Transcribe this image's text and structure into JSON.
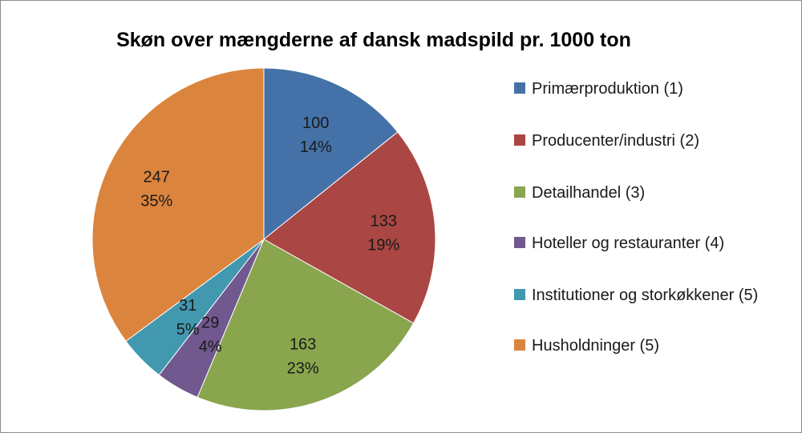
{
  "chart_data": {
    "type": "pie",
    "title": "Skøn over mængderne af dansk madspild pr. 1000 ton",
    "legend_position": "right",
    "slices": [
      {
        "label": "Primærproduktion (1)",
        "value": 100,
        "percent": "14%",
        "color": "#4472a8"
      },
      {
        "label": "Producenter/industri (2)",
        "value": 133,
        "percent": "19%",
        "color": "#aa4643"
      },
      {
        "label": "Detailhandel (3)",
        "value": 163,
        "percent": "23%",
        "color": "#89a54e"
      },
      {
        "label": "Hoteller og restauranter (4)",
        "value": 29,
        "percent": "4%",
        "color": "#71588f"
      },
      {
        "label": "Institutioner og storkøkkener (5)",
        "value": 31,
        "percent": "5%",
        "color": "#4198af"
      },
      {
        "label": "Husholdninger (5)",
        "value": 247,
        "percent": "35%",
        "color": "#db843d"
      }
    ]
  }
}
